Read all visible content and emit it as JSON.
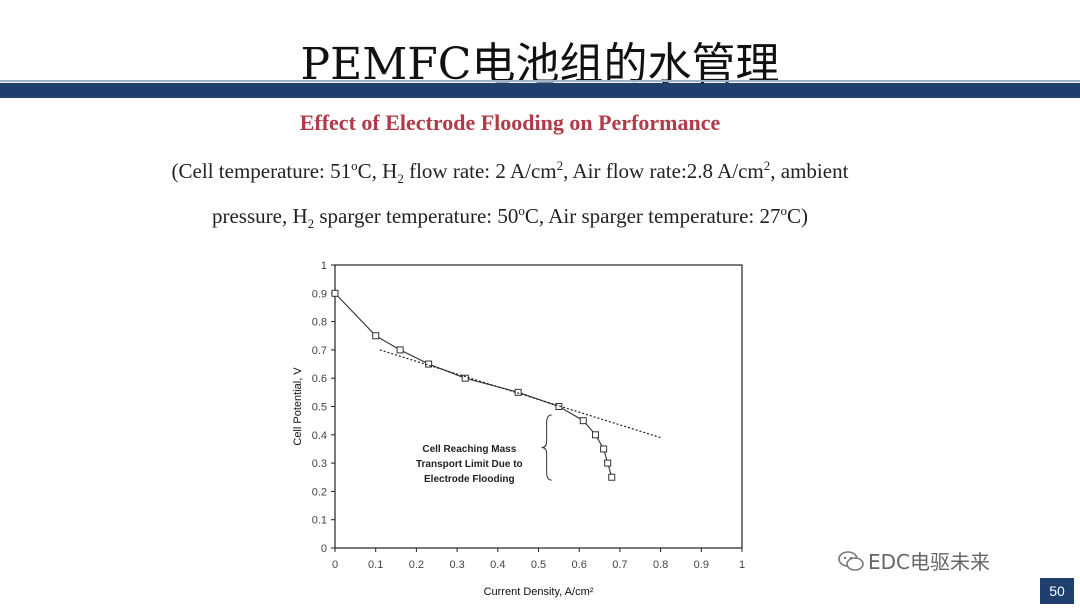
{
  "slide": {
    "title": "PEMFC电池组的水管理",
    "subtitle": "Effect of Electrode Flooding on Performance",
    "conditions": {
      "p1": "(Cell temperature: 51",
      "p1_sup": "o",
      "p2": "C, H",
      "p2_sub": "2",
      "p3": " flow rate: 2 A/cm",
      "p3_sup": "2",
      "p4": ", Air flow rate:2.8 A/cm",
      "p4_sup": "2",
      "p5": ", ambient pressure, H",
      "p5_sub": "2",
      "p6": " sparger temperature: 50",
      "p6_sup": "o",
      "p7": "C, Air sparger temperature: 27",
      "p7_sup": "o",
      "p8": "C)"
    },
    "watermark": "EDC电驱未来",
    "page_number": "50"
  },
  "colors": {
    "bar": "#1f3f6e",
    "subtitle": "#b03a48"
  },
  "chart_data": {
    "type": "line",
    "xlabel": "Current Density, A/cm²",
    "ylabel": "Cell Potential, V",
    "xlim": [
      0,
      1
    ],
    "ylim": [
      0,
      1
    ],
    "xticks": [
      "0",
      "0.1",
      "0.2",
      "0.3",
      "0.4",
      "0.5",
      "0.6",
      "0.7",
      "0.8",
      "0.9",
      "1"
    ],
    "yticks": [
      "0",
      "0.1",
      "0.2",
      "0.3",
      "0.4",
      "0.5",
      "0.6",
      "0.7",
      "0.8",
      "0.9",
      "1"
    ],
    "series": [
      {
        "style": "solid-square-markers",
        "x": [
          0,
          0.1,
          0.16,
          0.23,
          0.32,
          0.45,
          0.55,
          0.61,
          0.64,
          0.66,
          0.67,
          0.68
        ],
        "y": [
          0.9,
          0.75,
          0.7,
          0.65,
          0.6,
          0.55,
          0.5,
          0.45,
          0.4,
          0.35,
          0.3,
          0.25
        ]
      },
      {
        "style": "dotted-fit",
        "x": [
          0.11,
          0.8
        ],
        "y": [
          0.7,
          0.39
        ]
      }
    ],
    "annotation": {
      "lines": [
        "Cell Reaching Mass",
        "Transport Limit Due to",
        "Electrode Flooding"
      ],
      "x": 0.33,
      "y": 0.34,
      "brace_x": 0.52,
      "brace_y_top": 0.47,
      "brace_y_bottom": 0.24
    }
  }
}
